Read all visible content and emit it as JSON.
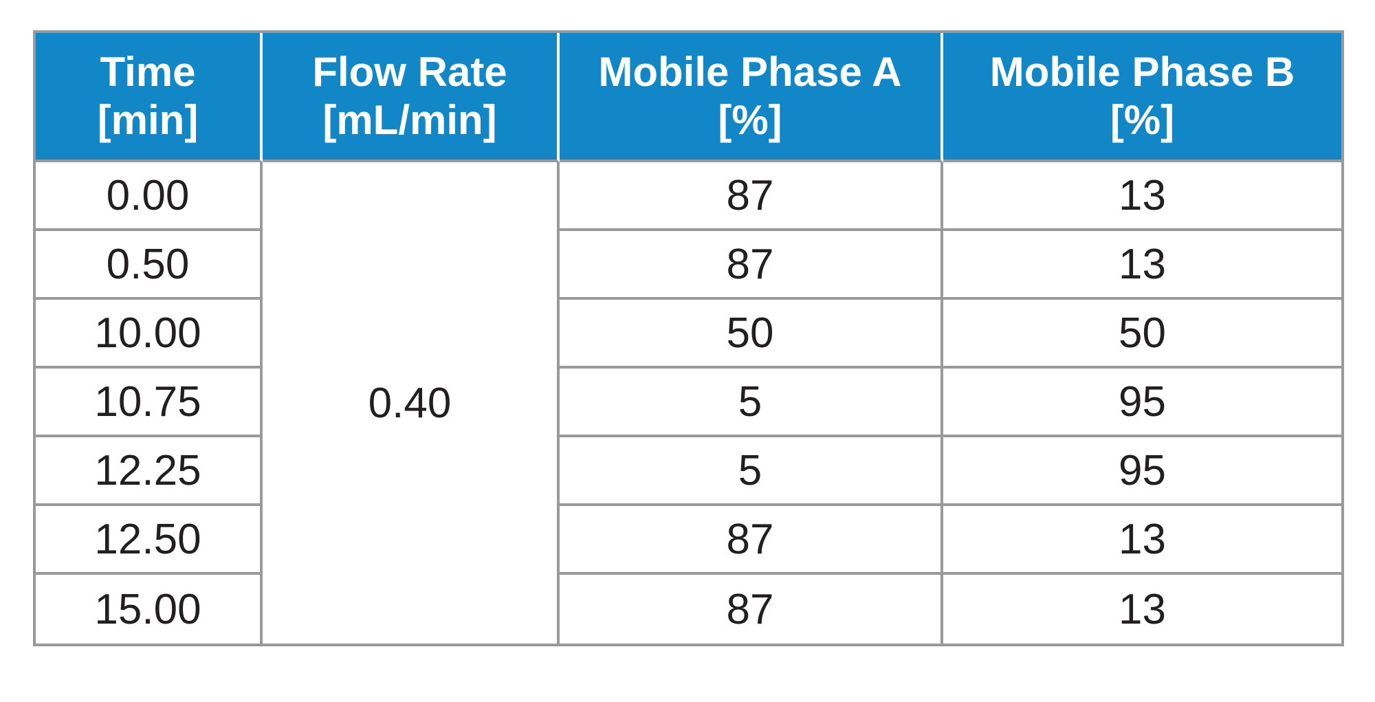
{
  "colors": {
    "header_bg": "#1187c8",
    "border": "#9a9a9a",
    "text": "#231f20",
    "header_text": "#ffffff",
    "header_divider": "#ffffff",
    "page_bg": "#ffffff"
  },
  "table": {
    "columns": [
      {
        "title": "Time",
        "unit": "[min]"
      },
      {
        "title": "Flow Rate",
        "unit": "[mL/min]"
      },
      {
        "title": "Mobile Phase A",
        "unit": "[%]"
      },
      {
        "title": "Mobile Phase B",
        "unit": "[%]"
      }
    ],
    "flow_rate_value": "0.40",
    "rows": [
      {
        "time": "0.00",
        "a": "87",
        "b": "13"
      },
      {
        "time": "0.50",
        "a": "87",
        "b": "13"
      },
      {
        "time": "10.00",
        "a": "50",
        "b": "50"
      },
      {
        "time": "10.75",
        "a": "5",
        "b": "95"
      },
      {
        "time": "12.25",
        "a": "5",
        "b": "95"
      },
      {
        "time": "12.50",
        "a": "87",
        "b": "13"
      },
      {
        "time": "15.00",
        "a": "87",
        "b": "13"
      }
    ]
  }
}
